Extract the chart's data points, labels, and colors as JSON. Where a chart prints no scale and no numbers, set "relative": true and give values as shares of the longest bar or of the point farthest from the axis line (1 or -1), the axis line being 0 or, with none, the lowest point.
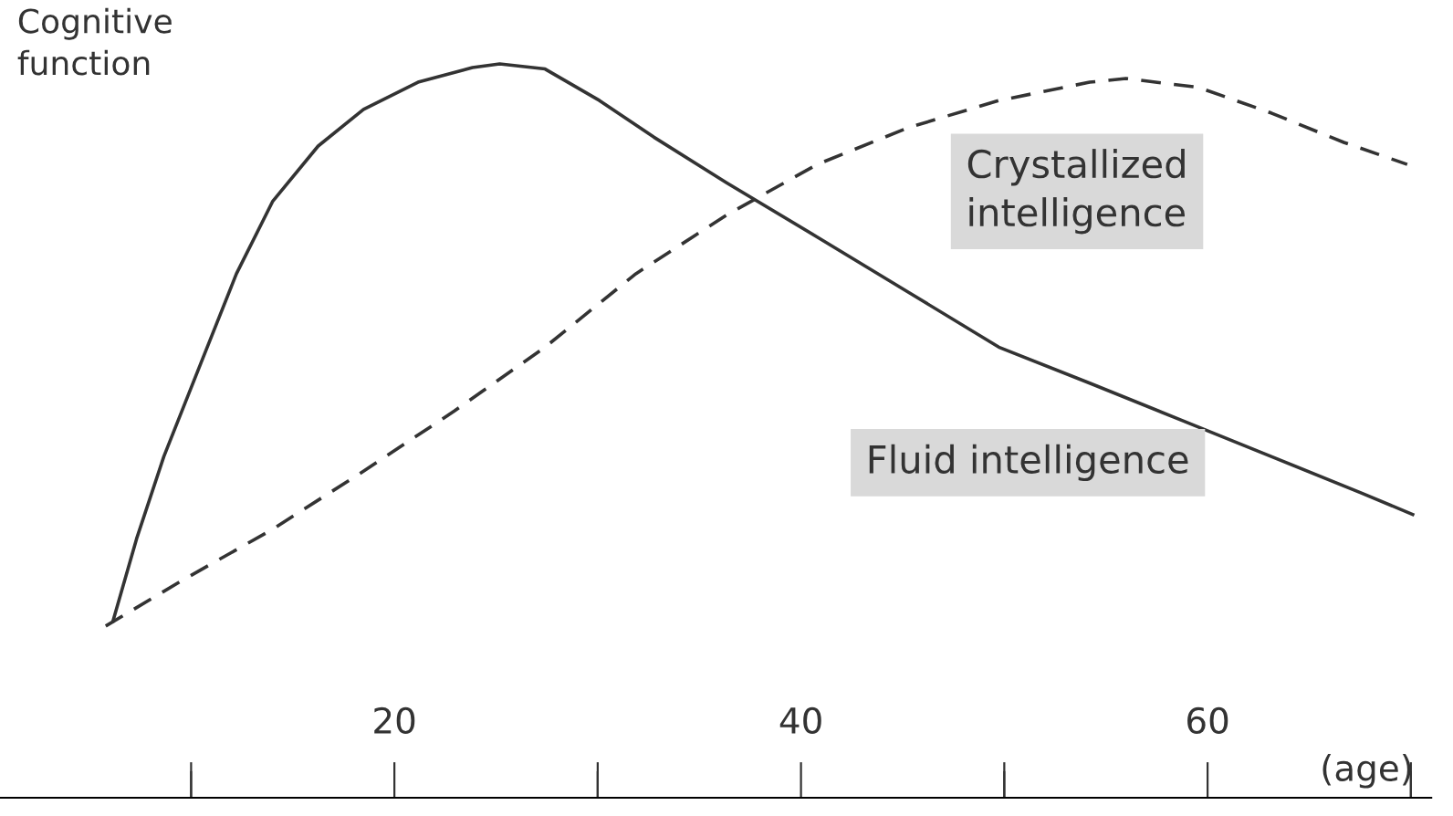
{
  "chart_data": {
    "type": "line",
    "relative": true,
    "ylabel": "Cognitive function",
    "xlabel": "(age)",
    "xlim": [
      0.6,
      71
    ],
    "xticks": [
      {
        "value": 10,
        "label": null
      },
      20,
      {
        "value": 30,
        "label": null
      },
      40,
      {
        "value": 50,
        "label": null
      },
      60,
      {
        "value": 70,
        "label": null
      }
    ],
    "grid": false,
    "legend": false,
    "marker": "none",
    "annotations": [
      "Crystallized intelligence",
      "Fluid intelligence"
    ],
    "series": [
      {
        "color": "#333333",
        "line_style": "solid",
        "x": [
          6.16,
          7.32,
          8.66,
          10.45,
          12.23,
          14.02,
          16.25,
          18.48,
          21.16,
          23.84,
          25.18,
          27.41,
          30.09,
          32.77,
          36.34,
          40.8,
          45.27,
          49.73,
          54.2,
          58.66,
          63.13,
          67.59,
          70.09
        ],
        "values": [
          0.241,
          0.353,
          0.465,
          0.59,
          0.714,
          0.813,
          0.888,
          0.938,
          0.975,
          0.995,
          1.0,
          0.993,
          0.95,
          0.9,
          0.838,
          0.764,
          0.689,
          0.614,
          0.565,
          0.515,
          0.465,
          0.415,
          0.386
        ]
      },
      {
        "color": "#333333",
        "line_style": "dashed",
        "x": [
          5.8,
          9.55,
          14.02,
          18.48,
          22.95,
          27.41,
          31.88,
          36.34,
          40.8,
          45.27,
          49.73,
          54.2,
          55.98,
          59.55,
          63.13,
          66.7,
          69.82
        ],
        "values": [
          0.234,
          0.296,
          0.366,
          0.445,
          0.527,
          0.614,
          0.714,
          0.794,
          0.863,
          0.913,
          0.95,
          0.975,
          0.98,
          0.968,
          0.933,
          0.893,
          0.863
        ]
      }
    ]
  }
}
